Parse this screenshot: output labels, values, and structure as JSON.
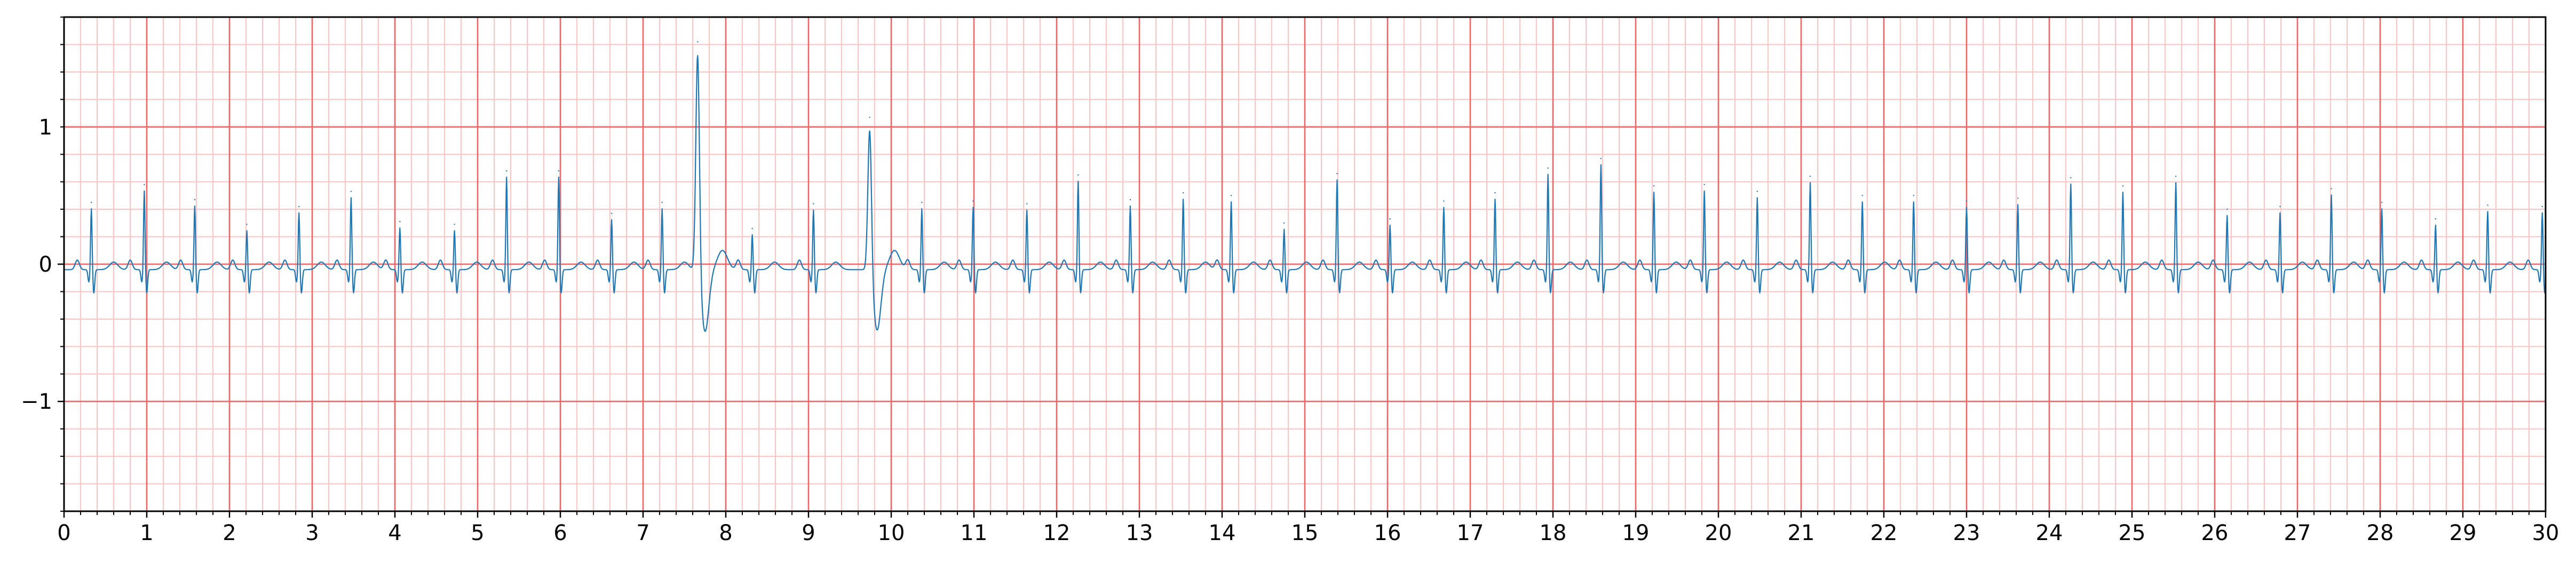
{
  "chart_data": {
    "type": "line",
    "title": "",
    "xlabel": "",
    "ylabel": "",
    "xlim": [
      0,
      30
    ],
    "ylim": [
      -1.8,
      1.8
    ],
    "grid": {
      "major_x": 1,
      "major_y": 1,
      "minor_x": 0.2,
      "minor_y": 0.2,
      "major_color": "#f06666",
      "minor_color": "#fbc6c6"
    },
    "x_ticks": [
      "0",
      "1",
      "2",
      "3",
      "4",
      "5",
      "6",
      "7",
      "8",
      "9",
      "10",
      "11",
      "12",
      "13",
      "14",
      "15",
      "16",
      "17",
      "18",
      "19",
      "20",
      "21",
      "22",
      "23",
      "24",
      "25",
      "26",
      "27",
      "28",
      "29",
      "30"
    ],
    "y_ticks": [
      {
        "value": 1,
        "label": "1"
      },
      {
        "value": 0,
        "label": "0"
      },
      {
        "value": -1,
        "label": "−1"
      }
    ],
    "series": [
      {
        "color": "#1f77b4",
        "beats": [
          {
            "t": 0.33,
            "r": 0.45
          },
          {
            "t": 0.97,
            "r": 0.58
          },
          {
            "t": 1.58,
            "r": 0.47
          },
          {
            "t": 2.21,
            "r": 0.29
          },
          {
            "t": 2.84,
            "r": 0.42
          },
          {
            "t": 3.47,
            "r": 0.53
          },
          {
            "t": 4.06,
            "r": 0.31
          },
          {
            "t": 4.72,
            "r": 0.29
          },
          {
            "t": 5.35,
            "r": 0.68
          },
          {
            "t": 5.98,
            "r": 0.68
          },
          {
            "t": 6.62,
            "r": 0.37
          },
          {
            "t": 7.23,
            "r": 0.45
          },
          {
            "t": 7.66,
            "r": 1.62,
            "s": -0.45,
            "pvc": true
          },
          {
            "t": 8.32,
            "r": 0.26
          },
          {
            "t": 9.06,
            "r": 0.44
          },
          {
            "t": 9.74,
            "r": 1.07,
            "s": -0.44,
            "pvc": true
          },
          {
            "t": 10.37,
            "r": 0.45
          },
          {
            "t": 10.99,
            "r": 0.46
          },
          {
            "t": 11.64,
            "r": 0.44
          },
          {
            "t": 12.26,
            "r": 0.65
          },
          {
            "t": 12.89,
            "r": 0.47
          },
          {
            "t": 13.53,
            "r": 0.52
          },
          {
            "t": 14.11,
            "r": 0.5
          },
          {
            "t": 14.75,
            "r": 0.3
          },
          {
            "t": 15.39,
            "r": 0.66
          },
          {
            "t": 16.03,
            "r": 0.33
          },
          {
            "t": 16.68,
            "r": 0.46
          },
          {
            "t": 17.3,
            "r": 0.52
          },
          {
            "t": 17.94,
            "r": 0.7
          },
          {
            "t": 18.58,
            "r": 0.77
          },
          {
            "t": 19.22,
            "r": 0.57
          },
          {
            "t": 19.83,
            "r": 0.58
          },
          {
            "t": 20.47,
            "r": 0.53
          },
          {
            "t": 21.11,
            "r": 0.64
          },
          {
            "t": 21.74,
            "r": 0.5
          },
          {
            "t": 22.36,
            "r": 0.5
          },
          {
            "t": 23.0,
            "r": 0.46
          },
          {
            "t": 23.62,
            "r": 0.48
          },
          {
            "t": 24.26,
            "r": 0.63
          },
          {
            "t": 24.89,
            "r": 0.57
          },
          {
            "t": 25.53,
            "r": 0.64
          },
          {
            "t": 26.15,
            "r": 0.4
          },
          {
            "t": 26.79,
            "r": 0.42
          },
          {
            "t": 27.41,
            "r": 0.55
          },
          {
            "t": 28.02,
            "r": 0.45
          },
          {
            "t": 28.67,
            "r": 0.33
          },
          {
            "t": 29.3,
            "r": 0.43
          },
          {
            "t": 29.96,
            "r": 0.42
          }
        ]
      }
    ]
  }
}
